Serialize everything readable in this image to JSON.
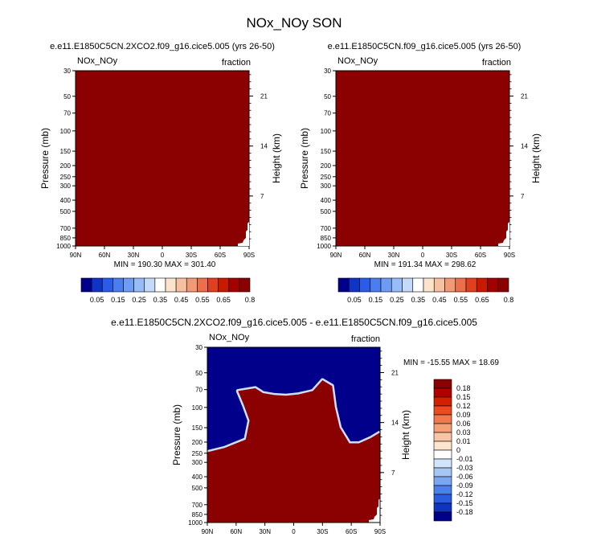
{
  "title": "NOx_NOy SON",
  "panels": [
    {
      "case": "e.e11.E1850C5CN.2XCO2.f09_g16.cice5.005 (yrs 26-50)",
      "var_label": "NOx_NOy",
      "units": "fraction",
      "stats": "MIN = 190.30   MAX = 301.40",
      "fill_color": "#8b0000"
    },
    {
      "case": "e.e11.E1850C5CN.f09_g16.cice5.005 (yrs 26-50)",
      "var_label": "NOx_NOy",
      "units": "fraction",
      "stats": "MIN = 191.34   MAX = 298.62",
      "fill_color": "#8b0000"
    },
    {
      "case": "e.e11.E1850C5CN.2XCO2.f09_g16.cice5.005 - e.e11.E1850C5CN.f09_g16.cice5.005",
      "var_label": "NOx_NOy",
      "units": "fraction",
      "stats": "MIN = -15.55   MAX = 18.69",
      "fill_color": "#8b0000",
      "background_color": "#00008b"
    }
  ],
  "axes": {
    "ylabel": "Pressure (mb)",
    "ylabel_right": "Height (km)",
    "pressure_ticks": [
      "30",
      "50",
      "70",
      "100",
      "150",
      "200",
      "250",
      "300",
      "400",
      "500",
      "700",
      "850",
      "1000"
    ],
    "diff_pressure_ticks": [
      "30",
      "50",
      "70",
      "100",
      "150",
      "200",
      "250",
      "300",
      "400",
      "500",
      "700",
      "850",
      "1000"
    ],
    "height_ticks": [
      "21",
      "14",
      "7"
    ],
    "lat_ticks": [
      "90N",
      "60N",
      "30N",
      "0",
      "30S",
      "60S",
      "90S"
    ]
  },
  "colorbar_top": {
    "labels": [
      "0.05",
      "0.15",
      "0.25",
      "0.35",
      "0.45",
      "0.55",
      "0.65",
      "0.8"
    ],
    "colors": [
      "#00008b",
      "#1034c8",
      "#2a5ce6",
      "#4a7ef0",
      "#6e9cf4",
      "#98bcf8",
      "#c4daf8",
      "#ffffff",
      "#fce4cc",
      "#f7c0a0",
      "#f29a74",
      "#ec6e4a",
      "#e0401e",
      "#c81a00",
      "#a50000",
      "#8b0000"
    ]
  },
  "colorbar_diff": {
    "labels": [
      "0.18",
      "0.15",
      "0.12",
      "0.09",
      "0.06",
      "0.03",
      "0.01",
      "0",
      "-0.01",
      "-0.03",
      "-0.06",
      "-0.09",
      "-0.12",
      "-0.15",
      "-0.18"
    ],
    "colors": [
      "#8b0000",
      "#b00000",
      "#d42000",
      "#ec4a20",
      "#f2784e",
      "#f6a07a",
      "#f8c4a6",
      "#fde4cc",
      "#ffffff",
      "#d2e4fa",
      "#a6c6f6",
      "#7aa6f2",
      "#4a80ec",
      "#2a5ce0",
      "#1034c0",
      "#00008b"
    ]
  },
  "chart_data": [
    {
      "type": "heatmap",
      "title": "e.e11.E1850C5CN.2XCO2.f09_g16.cice5.005 (yrs 26-50)",
      "xlabel": "",
      "ylabel": "Pressure (mb)",
      "ylabel_right": "Height (km)",
      "xlim": [
        "90N",
        "90S"
      ],
      "ylim": [
        1000,
        30
      ],
      "y_scale": "log",
      "min": 190.3,
      "max": 301.4,
      "field": "uniform maximum-class fill over entire domain"
    },
    {
      "type": "heatmap",
      "title": "e.e11.E1850C5CN.f09_g16.cice5.005 (yrs 26-50)",
      "xlabel": "",
      "ylabel": "Pressure (mb)",
      "ylabel_right": "Height (km)",
      "xlim": [
        "90N",
        "90S"
      ],
      "ylim": [
        1000,
        30
      ],
      "y_scale": "log",
      "min": 191.34,
      "max": 298.62,
      "field": "uniform maximum-class fill over entire domain"
    },
    {
      "type": "heatmap",
      "title": "e.e11.E1850C5CN.2XCO2.f09_g16.cice5.005 - e.e11.E1850C5CN.f09_g16.cice5.005",
      "xlabel": "",
      "ylabel": "Pressure (mb)",
      "ylabel_right": "Height (km)",
      "xlim": [
        "90N",
        "90S"
      ],
      "ylim": [
        1000,
        30
      ],
      "y_scale": "log",
      "min": -15.55,
      "max": 18.69,
      "boundary": {
        "lat": [
          90,
          72,
          60,
          50,
          46,
          52,
          58,
          40,
          32,
          20,
          8,
          -5,
          -20,
          -30,
          -40,
          -43,
          -48,
          -58,
          -68,
          -80,
          -90
        ],
        "p": [
          245,
          225,
          205,
          190,
          130,
          95,
          72,
          68,
          75,
          78,
          79,
          77,
          72,
          58,
          65,
          100,
          150,
          205,
          205,
          185,
          165
        ]
      },
      "field": "positive (dark red) below boundary, negative (dark blue) above boundary"
    }
  ]
}
